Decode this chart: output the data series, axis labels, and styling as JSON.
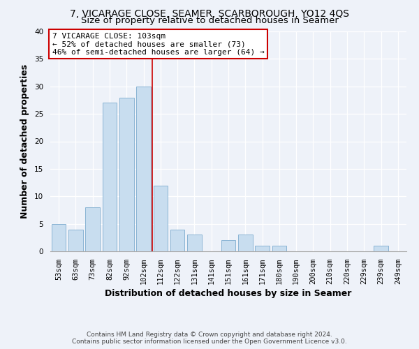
{
  "title": "7, VICARAGE CLOSE, SEAMER, SCARBOROUGH, YO12 4QS",
  "subtitle": "Size of property relative to detached houses in Seamer",
  "xlabel": "Distribution of detached houses by size in Seamer",
  "ylabel": "Number of detached properties",
  "bar_labels": [
    "53sqm",
    "63sqm",
    "73sqm",
    "82sqm",
    "92sqm",
    "102sqm",
    "112sqm",
    "122sqm",
    "131sqm",
    "141sqm",
    "151sqm",
    "161sqm",
    "171sqm",
    "180sqm",
    "190sqm",
    "200sqm",
    "210sqm",
    "220sqm",
    "229sqm",
    "239sqm",
    "249sqm"
  ],
  "bar_values": [
    5,
    4,
    8,
    27,
    28,
    30,
    12,
    4,
    3,
    0,
    2,
    3,
    1,
    1,
    0,
    0,
    0,
    0,
    0,
    1,
    0
  ],
  "bar_color": "#c8ddef",
  "bar_edge_color": "#8ab4d4",
  "vline_x_index": 5,
  "vline_color": "#cc0000",
  "annotation_title": "7 VICARAGE CLOSE: 103sqm",
  "annotation_line1": "← 52% of detached houses are smaller (73)",
  "annotation_line2": "46% of semi-detached houses are larger (64) →",
  "annotation_box_color": "#ffffff",
  "annotation_box_edge": "#cc0000",
  "ylim": [
    0,
    40
  ],
  "yticks": [
    0,
    5,
    10,
    15,
    20,
    25,
    30,
    35,
    40
  ],
  "bg_color": "#eef2f9",
  "grid_color": "#ffffff",
  "title_fontsize": 10,
  "subtitle_fontsize": 9.5,
  "axis_label_fontsize": 9,
  "tick_fontsize": 7.5,
  "annotation_fontsize": 8,
  "footer1": "Contains HM Land Registry data © Crown copyright and database right 2024.",
  "footer2": "Contains public sector information licensed under the Open Government Licence v3.0."
}
